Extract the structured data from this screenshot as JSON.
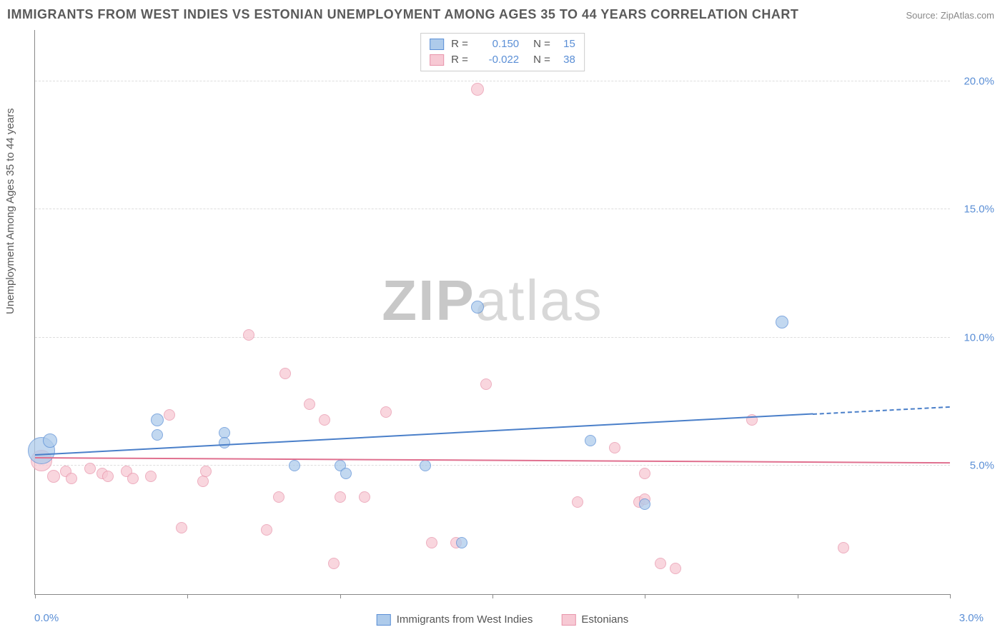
{
  "title": "IMMIGRANTS FROM WEST INDIES VS ESTONIAN UNEMPLOYMENT AMONG AGES 35 TO 44 YEARS CORRELATION CHART",
  "source": "Source: ZipAtlas.com",
  "ylabel": "Unemployment Among Ages 35 to 44 years",
  "watermark_a": "ZIP",
  "watermark_b": "atlas",
  "chart": {
    "type": "scatter",
    "background_color": "#ffffff",
    "grid_color": "#dddddd",
    "axis_color": "#888888",
    "label_color": "#5b8fd6",
    "xlim": [
      0.0,
      3.0
    ],
    "ylim": [
      0.0,
      22.0
    ],
    "xticks": [
      0.0,
      0.5,
      1.0,
      1.5,
      2.0,
      2.5,
      3.0
    ],
    "xtick_labels": {
      "left": "0.0%",
      "right": "3.0%"
    },
    "yticks": [
      5.0,
      10.0,
      15.0,
      20.0
    ],
    "ytick_labels": [
      "5.0%",
      "10.0%",
      "15.0%",
      "20.0%"
    ],
    "series": [
      {
        "name": "Immigrants from West Indies",
        "color_fill": "#aecbeb",
        "color_stroke": "#5b8fd6",
        "r_value": "0.150",
        "n_value": "15",
        "trend": {
          "x1": 0.0,
          "y1": 5.4,
          "x2": 2.55,
          "y2": 7.0,
          "dash_to_x": 3.0,
          "color": "#4a7fc9"
        },
        "points": [
          {
            "x": 0.02,
            "y": 5.6,
            "r": 18
          },
          {
            "x": 0.05,
            "y": 6.0,
            "r": 9
          },
          {
            "x": 0.4,
            "y": 6.8,
            "r": 8
          },
          {
            "x": 0.4,
            "y": 6.2,
            "r": 7
          },
          {
            "x": 0.62,
            "y": 6.3,
            "r": 7
          },
          {
            "x": 0.62,
            "y": 5.9,
            "r": 7
          },
          {
            "x": 0.85,
            "y": 5.0,
            "r": 7
          },
          {
            "x": 1.0,
            "y": 5.0,
            "r": 7
          },
          {
            "x": 1.02,
            "y": 4.7,
            "r": 7
          },
          {
            "x": 1.28,
            "y": 5.0,
            "r": 7
          },
          {
            "x": 1.4,
            "y": 2.0,
            "r": 7
          },
          {
            "x": 1.45,
            "y": 11.2,
            "r": 8
          },
          {
            "x": 1.82,
            "y": 6.0,
            "r": 7
          },
          {
            "x": 2.0,
            "y": 3.5,
            "r": 7
          },
          {
            "x": 2.45,
            "y": 10.6,
            "r": 8
          }
        ]
      },
      {
        "name": "Estonians",
        "color_fill": "#f7c9d4",
        "color_stroke": "#e895ab",
        "r_value": "-0.022",
        "n_value": "38",
        "trend": {
          "x1": 0.0,
          "y1": 5.3,
          "x2": 3.0,
          "y2": 5.1,
          "color": "#e0708f"
        },
        "points": [
          {
            "x": 0.02,
            "y": 5.2,
            "r": 14
          },
          {
            "x": 0.06,
            "y": 4.6,
            "r": 8
          },
          {
            "x": 0.1,
            "y": 4.8,
            "r": 7
          },
          {
            "x": 0.12,
            "y": 4.5,
            "r": 7
          },
          {
            "x": 0.18,
            "y": 4.9,
            "r": 7
          },
          {
            "x": 0.22,
            "y": 4.7,
            "r": 7
          },
          {
            "x": 0.24,
            "y": 4.6,
            "r": 7
          },
          {
            "x": 0.3,
            "y": 4.8,
            "r": 7
          },
          {
            "x": 0.32,
            "y": 4.5,
            "r": 7
          },
          {
            "x": 0.38,
            "y": 4.6,
            "r": 7
          },
          {
            "x": 0.44,
            "y": 7.0,
            "r": 7
          },
          {
            "x": 0.48,
            "y": 2.6,
            "r": 7
          },
          {
            "x": 0.55,
            "y": 4.4,
            "r": 7
          },
          {
            "x": 0.56,
            "y": 4.8,
            "r": 7
          },
          {
            "x": 0.7,
            "y": 10.1,
            "r": 7
          },
          {
            "x": 0.76,
            "y": 2.5,
            "r": 7
          },
          {
            "x": 0.8,
            "y": 3.8,
            "r": 7
          },
          {
            "x": 0.82,
            "y": 8.6,
            "r": 7
          },
          {
            "x": 0.9,
            "y": 7.4,
            "r": 7
          },
          {
            "x": 0.95,
            "y": 6.8,
            "r": 7
          },
          {
            "x": 0.98,
            "y": 1.2,
            "r": 7
          },
          {
            "x": 1.0,
            "y": 3.8,
            "r": 7
          },
          {
            "x": 1.08,
            "y": 3.8,
            "r": 7
          },
          {
            "x": 1.15,
            "y": 7.1,
            "r": 7
          },
          {
            "x": 1.3,
            "y": 2.0,
            "r": 7
          },
          {
            "x": 1.38,
            "y": 2.0,
            "r": 7
          },
          {
            "x": 1.45,
            "y": 19.7,
            "r": 8
          },
          {
            "x": 1.48,
            "y": 8.2,
            "r": 7
          },
          {
            "x": 1.78,
            "y": 3.6,
            "r": 7
          },
          {
            "x": 1.9,
            "y": 5.7,
            "r": 7
          },
          {
            "x": 1.98,
            "y": 3.6,
            "r": 7
          },
          {
            "x": 2.0,
            "y": 3.7,
            "r": 7
          },
          {
            "x": 2.0,
            "y": 4.7,
            "r": 7
          },
          {
            "x": 2.05,
            "y": 1.2,
            "r": 7
          },
          {
            "x": 2.1,
            "y": 1.0,
            "r": 7
          },
          {
            "x": 2.35,
            "y": 6.8,
            "r": 7
          },
          {
            "x": 2.65,
            "y": 1.8,
            "r": 7
          }
        ]
      }
    ]
  }
}
